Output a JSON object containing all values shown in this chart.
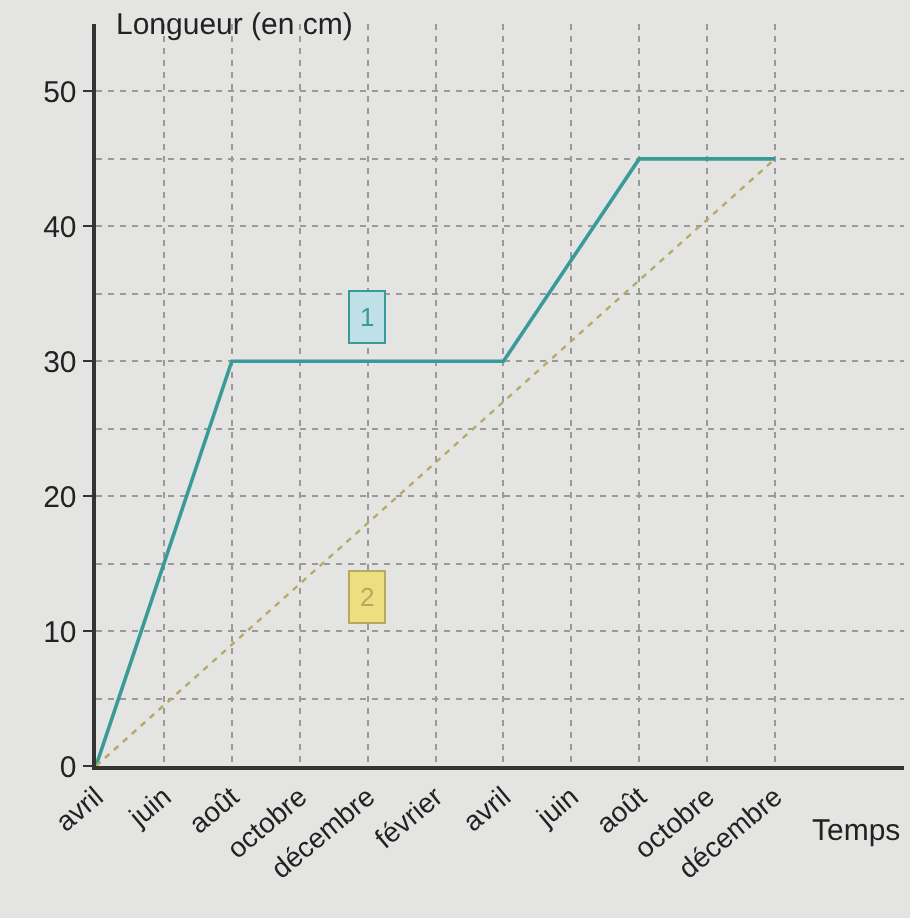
{
  "chart_data": {
    "type": "line",
    "xlabel": "Temps",
    "ylabel": "Longueur (en cm)",
    "categories": [
      "avril",
      "juin",
      "août",
      "octobre",
      "décembre",
      "février",
      "avril",
      "juin",
      "août",
      "octobre",
      "décembre",
      null
    ],
    "series": [
      {
        "name": "1",
        "color": "#3a9a98",
        "values": [
          0,
          15,
          30,
          30,
          30,
          30,
          30,
          37.5,
          45,
          45,
          45,
          null
        ],
        "line_style": "solid"
      },
      {
        "name": "2",
        "color": "#b8a860",
        "values": [
          0,
          4.5,
          9,
          13.5,
          18,
          22.5,
          27,
          31.5,
          36,
          40.5,
          45,
          null
        ],
        "line_style": "dotted"
      }
    ],
    "ylim": [
      0,
      55
    ],
    "yticks": [
      0,
      {
        "value": 5,
        "label": null
      },
      10,
      {
        "value": 15,
        "label": null
      },
      20,
      {
        "value": 25,
        "label": null
      },
      30,
      {
        "value": 35,
        "label": null
      },
      40,
      {
        "value": 45,
        "label": null
      },
      50
    ],
    "grid": true,
    "legend": false,
    "marker": "none"
  }
}
